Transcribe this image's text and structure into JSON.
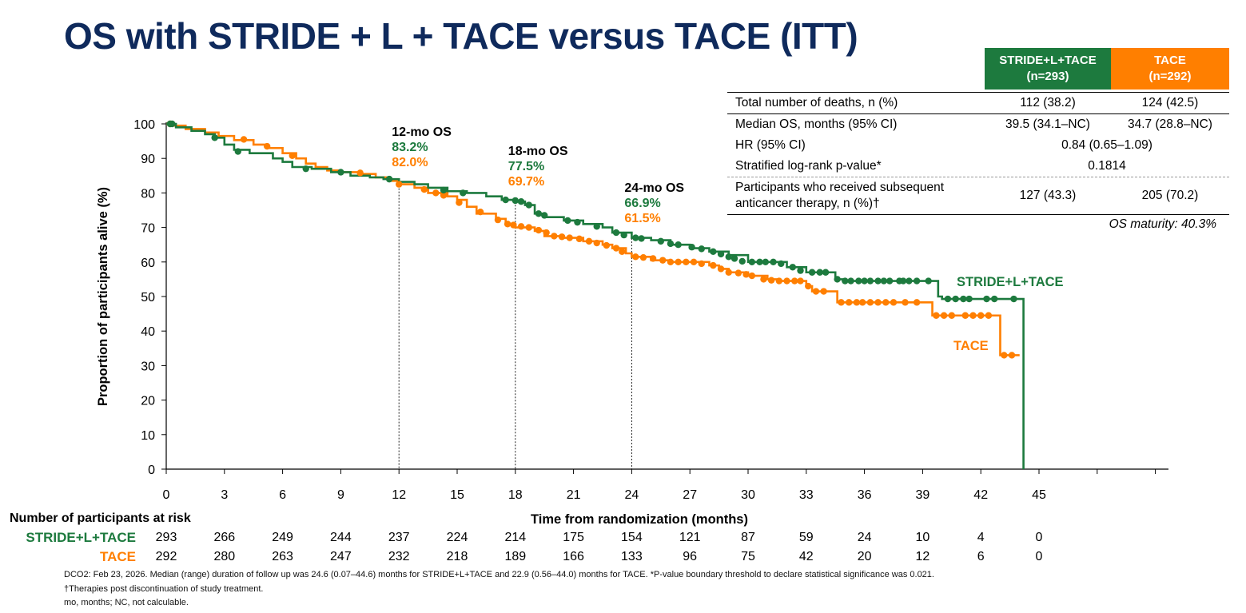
{
  "title": "OS with STRIDE + L + TACE versus TACE (ITT)",
  "table": {
    "headers": [
      {
        "line1": "STRIDE+L+TACE",
        "line2": "(n=293)",
        "color": "#1d7a3e"
      },
      {
        "line1": "TACE",
        "line2": "(n=292)",
        "color": "#ff7f00"
      }
    ],
    "rows": [
      {
        "label": "Total number of deaths, n (%)",
        "v1": "112 (38.2)",
        "v2": "124 (42.5)"
      },
      {
        "label": "Median OS, months (95% CI)",
        "v1": "39.5 (34.1–NC)",
        "v2": "34.7 (28.8–NC)"
      },
      {
        "label": "HR (95% CI)",
        "span": "0.84 (0.65–1.09)"
      },
      {
        "label": "Stratified log-rank p-value*",
        "span": "0.1814"
      },
      {
        "label_line1": "Participants who received subsequent",
        "label_line2": "anticancer therapy, n (%)†",
        "v1": "127 (43.3)",
        "v2": "205 (70.2)"
      }
    ],
    "maturity": "OS maturity: 40.3%"
  },
  "chart_data": {
    "type": "line",
    "subtype": "kaplan-meier",
    "xlabel": "Time from randomization (months)",
    "ylabel": "Proportion of participants alive (%)",
    "xlim": [
      0,
      45
    ],
    "ylim": [
      0,
      100
    ],
    "xticks": [
      0,
      3,
      6,
      9,
      12,
      15,
      18,
      21,
      24,
      27,
      30,
      33,
      36,
      39,
      42,
      45
    ],
    "yticks": [
      0,
      10,
      20,
      30,
      40,
      50,
      60,
      70,
      80,
      90,
      100
    ],
    "grid": false,
    "series": [
      {
        "name": "STRIDE+L+TACE",
        "color": "#1d7a3e",
        "step": [
          [
            0,
            100
          ],
          [
            0.5,
            99
          ],
          [
            1.3,
            98
          ],
          [
            2,
            97
          ],
          [
            2.5,
            96
          ],
          [
            3,
            94
          ],
          [
            3.5,
            92.5
          ],
          [
            4.3,
            91.5
          ],
          [
            5.5,
            90
          ],
          [
            6,
            89
          ],
          [
            6.5,
            87.5
          ],
          [
            7.5,
            87
          ],
          [
            8.5,
            86
          ],
          [
            9.5,
            85
          ],
          [
            10.5,
            84.5
          ],
          [
            11.2,
            84
          ],
          [
            12,
            83.2
          ],
          [
            12.8,
            82.5
          ],
          [
            13.5,
            81.5
          ],
          [
            14.5,
            80.5
          ],
          [
            15.5,
            80
          ],
          [
            16.5,
            79
          ],
          [
            17.3,
            78
          ],
          [
            18,
            77.5
          ],
          [
            18.5,
            76.5
          ],
          [
            19,
            74
          ],
          [
            19.5,
            73
          ],
          [
            20.5,
            72
          ],
          [
            21.5,
            71
          ],
          [
            22.5,
            70
          ],
          [
            23,
            68.5
          ],
          [
            24,
            67
          ],
          [
            25,
            66.3
          ],
          [
            26,
            65
          ],
          [
            27,
            64
          ],
          [
            28,
            63
          ],
          [
            29,
            62
          ],
          [
            30,
            60
          ],
          [
            32,
            58.5
          ],
          [
            33,
            57
          ],
          [
            34.5,
            55
          ],
          [
            35,
            54.5
          ],
          [
            39.8,
            50
          ],
          [
            40,
            49.3
          ],
          [
            44.2,
            49.3
          ],
          [
            44.2,
            0
          ]
        ],
        "censors": [
          [
            0.2,
            100
          ],
          [
            0.3,
            100
          ],
          [
            2.5,
            96
          ],
          [
            3.7,
            92
          ],
          [
            7.2,
            87
          ],
          [
            9,
            86
          ],
          [
            11.5,
            84
          ],
          [
            14.3,
            80.8
          ],
          [
            15.3,
            80
          ],
          [
            17.5,
            78
          ],
          [
            18,
            77.8
          ],
          [
            18.3,
            77.5
          ],
          [
            18.7,
            76.5
          ],
          [
            19.2,
            74
          ],
          [
            19.5,
            73.5
          ],
          [
            20.7,
            72
          ],
          [
            21.2,
            71.5
          ],
          [
            22.2,
            70.3
          ],
          [
            23.2,
            68.5
          ],
          [
            23.6,
            67.8
          ],
          [
            24.2,
            67
          ],
          [
            24.5,
            66.8
          ],
          [
            25.5,
            66
          ],
          [
            26,
            65.3
          ],
          [
            26.4,
            65
          ],
          [
            27.1,
            64.3
          ],
          [
            27.6,
            63.8
          ],
          [
            28.2,
            63
          ],
          [
            28.6,
            62.3
          ],
          [
            29,
            61.5
          ],
          [
            29.3,
            61
          ],
          [
            29.7,
            60.2
          ],
          [
            30.2,
            60
          ],
          [
            30.6,
            60
          ],
          [
            30.9,
            60
          ],
          [
            31.3,
            60
          ],
          [
            31.7,
            59.5
          ],
          [
            32.3,
            58.5
          ],
          [
            32.7,
            57.5
          ],
          [
            33.3,
            57
          ],
          [
            33.7,
            57
          ],
          [
            34,
            57
          ],
          [
            34.6,
            55
          ],
          [
            35,
            54.5
          ],
          [
            35.3,
            54.5
          ],
          [
            35.7,
            54.5
          ],
          [
            36,
            54.5
          ],
          [
            36.3,
            54.5
          ],
          [
            36.7,
            54.5
          ],
          [
            37,
            54.5
          ],
          [
            37.3,
            54.5
          ],
          [
            37.8,
            54.5
          ],
          [
            38,
            54.5
          ],
          [
            38.3,
            54.5
          ],
          [
            38.7,
            54.5
          ],
          [
            39.3,
            54.5
          ],
          [
            40.3,
            49.3
          ],
          [
            40.7,
            49.3
          ],
          [
            41.1,
            49.3
          ],
          [
            41.4,
            49.3
          ],
          [
            42.3,
            49.3
          ],
          [
            42.7,
            49.3
          ],
          [
            43.7,
            49.3
          ]
        ]
      },
      {
        "name": "TACE",
        "color": "#ff7f00",
        "step": [
          [
            0,
            100
          ],
          [
            0.3,
            99.5
          ],
          [
            1,
            98.5
          ],
          [
            2,
            97.5
          ],
          [
            2.7,
            96.5
          ],
          [
            3.5,
            95.3
          ],
          [
            4.5,
            94
          ],
          [
            5.2,
            93
          ],
          [
            6,
            91.5
          ],
          [
            6.7,
            90
          ],
          [
            7.2,
            88.5
          ],
          [
            7.7,
            87.5
          ],
          [
            8.3,
            86.5
          ],
          [
            9,
            86
          ],
          [
            10,
            85.5
          ],
          [
            10.8,
            84.5
          ],
          [
            11.5,
            83.5
          ],
          [
            12,
            82.5
          ],
          [
            12.8,
            81.5
          ],
          [
            13.5,
            80
          ],
          [
            14.5,
            79
          ],
          [
            15,
            78
          ],
          [
            15.5,
            76
          ],
          [
            16,
            74
          ],
          [
            17,
            72.5
          ],
          [
            17.5,
            71
          ],
          [
            18,
            70
          ],
          [
            19,
            69
          ],
          [
            19.5,
            67.5
          ],
          [
            20.5,
            67
          ],
          [
            21.5,
            66
          ],
          [
            22.5,
            65
          ],
          [
            23,
            64
          ],
          [
            23.7,
            62.5
          ],
          [
            24,
            61.5
          ],
          [
            25,
            60.5
          ],
          [
            26,
            60
          ],
          [
            28,
            59
          ],
          [
            28.5,
            58
          ],
          [
            29,
            57
          ],
          [
            30,
            56
          ],
          [
            31,
            55
          ],
          [
            31.5,
            54.5
          ],
          [
            33,
            53
          ],
          [
            33.3,
            51.5
          ],
          [
            34.6,
            51.5
          ],
          [
            34.6,
            48.3
          ],
          [
            39.5,
            48.3
          ],
          [
            39.5,
            44.5
          ],
          [
            43,
            44.5
          ],
          [
            43,
            33
          ],
          [
            44,
            33
          ]
        ],
        "censors": [
          [
            0.2,
            100
          ],
          [
            4,
            95.5
          ],
          [
            5.2,
            93.5
          ],
          [
            6.5,
            90.8
          ],
          [
            10,
            85.8
          ],
          [
            12,
            82.5
          ],
          [
            13.3,
            81
          ],
          [
            13.9,
            80
          ],
          [
            14.3,
            79.3
          ],
          [
            15.1,
            77.2
          ],
          [
            16.2,
            74.5
          ],
          [
            17.1,
            72.2
          ],
          [
            17.6,
            71
          ],
          [
            17.9,
            70.7
          ],
          [
            18.3,
            70.3
          ],
          [
            18.7,
            70
          ],
          [
            19.2,
            69.2
          ],
          [
            19.6,
            68.5
          ],
          [
            20,
            67.5
          ],
          [
            20.4,
            67.3
          ],
          [
            20.8,
            67
          ],
          [
            21.3,
            66.7
          ],
          [
            21.8,
            66
          ],
          [
            22.2,
            65.5
          ],
          [
            22.7,
            64.8
          ],
          [
            23.2,
            64
          ],
          [
            23.5,
            63
          ],
          [
            24.2,
            61.5
          ],
          [
            24.6,
            61.3
          ],
          [
            25.1,
            61
          ],
          [
            25.6,
            60.5
          ],
          [
            26,
            60
          ],
          [
            26.4,
            60
          ],
          [
            26.8,
            60
          ],
          [
            27.2,
            60
          ],
          [
            27.6,
            59.5
          ],
          [
            28.2,
            59
          ],
          [
            28.6,
            58
          ],
          [
            29,
            57
          ],
          [
            29.5,
            56.8
          ],
          [
            29.9,
            56.4
          ],
          [
            30.2,
            56
          ],
          [
            30.8,
            55
          ],
          [
            31.2,
            54.7
          ],
          [
            31.6,
            54.5
          ],
          [
            32,
            54.5
          ],
          [
            32.4,
            54.5
          ],
          [
            32.7,
            54.5
          ],
          [
            33.1,
            53
          ],
          [
            33.5,
            51.5
          ],
          [
            33.9,
            51.5
          ],
          [
            34.8,
            48.3
          ],
          [
            35.2,
            48.3
          ],
          [
            35.6,
            48.3
          ],
          [
            35.9,
            48.3
          ],
          [
            36.3,
            48.3
          ],
          [
            36.7,
            48.3
          ],
          [
            37.1,
            48.3
          ],
          [
            37.5,
            48.3
          ],
          [
            38.1,
            48.3
          ],
          [
            38.7,
            48.3
          ],
          [
            39.7,
            44.5
          ],
          [
            40.1,
            44.5
          ],
          [
            40.5,
            44.5
          ],
          [
            41.2,
            44.5
          ],
          [
            41.6,
            44.5
          ],
          [
            42,
            44.5
          ],
          [
            42.4,
            44.5
          ],
          [
            43.2,
            33
          ],
          [
            43.6,
            33
          ]
        ]
      }
    ],
    "annotations": [
      {
        "x": 12,
        "header": "12-mo OS",
        "v1": "83.2%",
        "v2": "82.0%"
      },
      {
        "x": 18,
        "header": "18-mo OS",
        "v1": "77.5%",
        "v2": "69.7%"
      },
      {
        "x": 24,
        "header": "24-mo OS",
        "v1": "66.9%",
        "v2": "61.5%"
      }
    ],
    "series_labels": {
      "stride": "STRIDE+L+TACE",
      "tace": "TACE"
    }
  },
  "risk": {
    "title": "Number of participants at risk",
    "times": [
      0,
      3,
      6,
      9,
      12,
      15,
      18,
      21,
      24,
      27,
      30,
      33,
      36,
      39,
      42,
      45
    ],
    "rows": [
      {
        "label": "STRIDE+L+TACE",
        "color": "#1d7a3e",
        "values": [
          293,
          266,
          249,
          244,
          237,
          224,
          214,
          175,
          154,
          121,
          87,
          59,
          24,
          10,
          4,
          0
        ]
      },
      {
        "label": "TACE",
        "color": "#ff7f00",
        "values": [
          292,
          280,
          263,
          247,
          232,
          218,
          189,
          166,
          133,
          96,
          75,
          42,
          20,
          12,
          6,
          0
        ]
      }
    ]
  },
  "footnotes": [
    "DCO2: Feb 23, 2026. Median (range) duration of follow up was 24.6 (0.07–44.6) months for STRIDE+L+TACE and 22.9 (0.56–44.0) months for TACE. *P-value boundary threshold to declare statistical significance was 0.021.",
    "†Therapies post discontinuation of study treatment.",
    "mo, months; NC, not calculable."
  ]
}
